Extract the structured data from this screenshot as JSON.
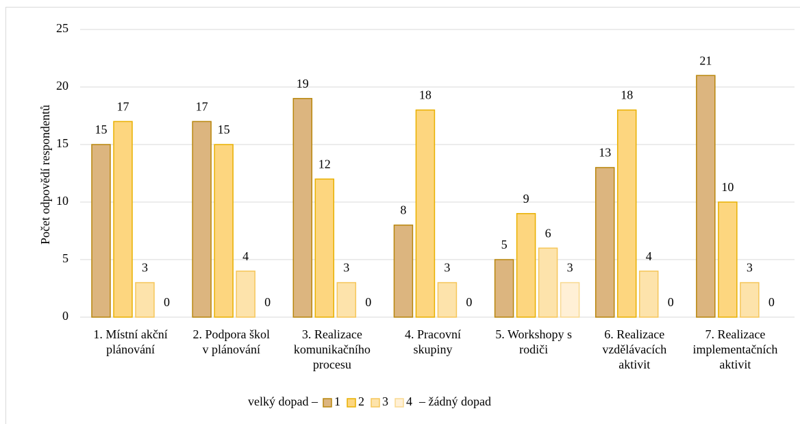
{
  "chart_data": {
    "type": "bar",
    "y_label": "Počet odpovědí respondentů",
    "categories": [
      [
        "1. Místní akční",
        "plánování"
      ],
      [
        "2. Podpora škol",
        "v plánování"
      ],
      [
        "3. Realizace",
        "komunikačního",
        "procesu"
      ],
      [
        "4. Pracovní",
        "skupiny"
      ],
      [
        "5. Workshopy s",
        "rodiči"
      ],
      [
        "6. Realizace",
        "vzdělávacích",
        "aktivit"
      ],
      [
        "7. Realizace",
        "implementačních",
        "aktivit"
      ]
    ],
    "series": [
      {
        "name": "1",
        "color": "#dcb57f",
        "border": "#b8860b",
        "values": [
          15,
          17,
          19,
          8,
          5,
          13,
          21
        ]
      },
      {
        "name": "2",
        "color": "#fdd67f",
        "border": "#e8b000",
        "values": [
          17,
          15,
          12,
          18,
          9,
          18,
          10
        ]
      },
      {
        "name": "3",
        "color": "#fde3ab",
        "border": "#f5c65a",
        "values": [
          3,
          4,
          3,
          3,
          6,
          4,
          3
        ]
      },
      {
        "name": "4",
        "color": "#fff0d6",
        "border": "#f8d990",
        "values": [
          0,
          0,
          0,
          0,
          3,
          0,
          0
        ]
      }
    ],
    "legend_prefix": "velký dopad –",
    "legend_suffix": "– žádný dopad",
    "ylim": [
      0,
      25
    ],
    "yticks": [
      0,
      5,
      10,
      15,
      20,
      25
    ],
    "grid": true
  }
}
